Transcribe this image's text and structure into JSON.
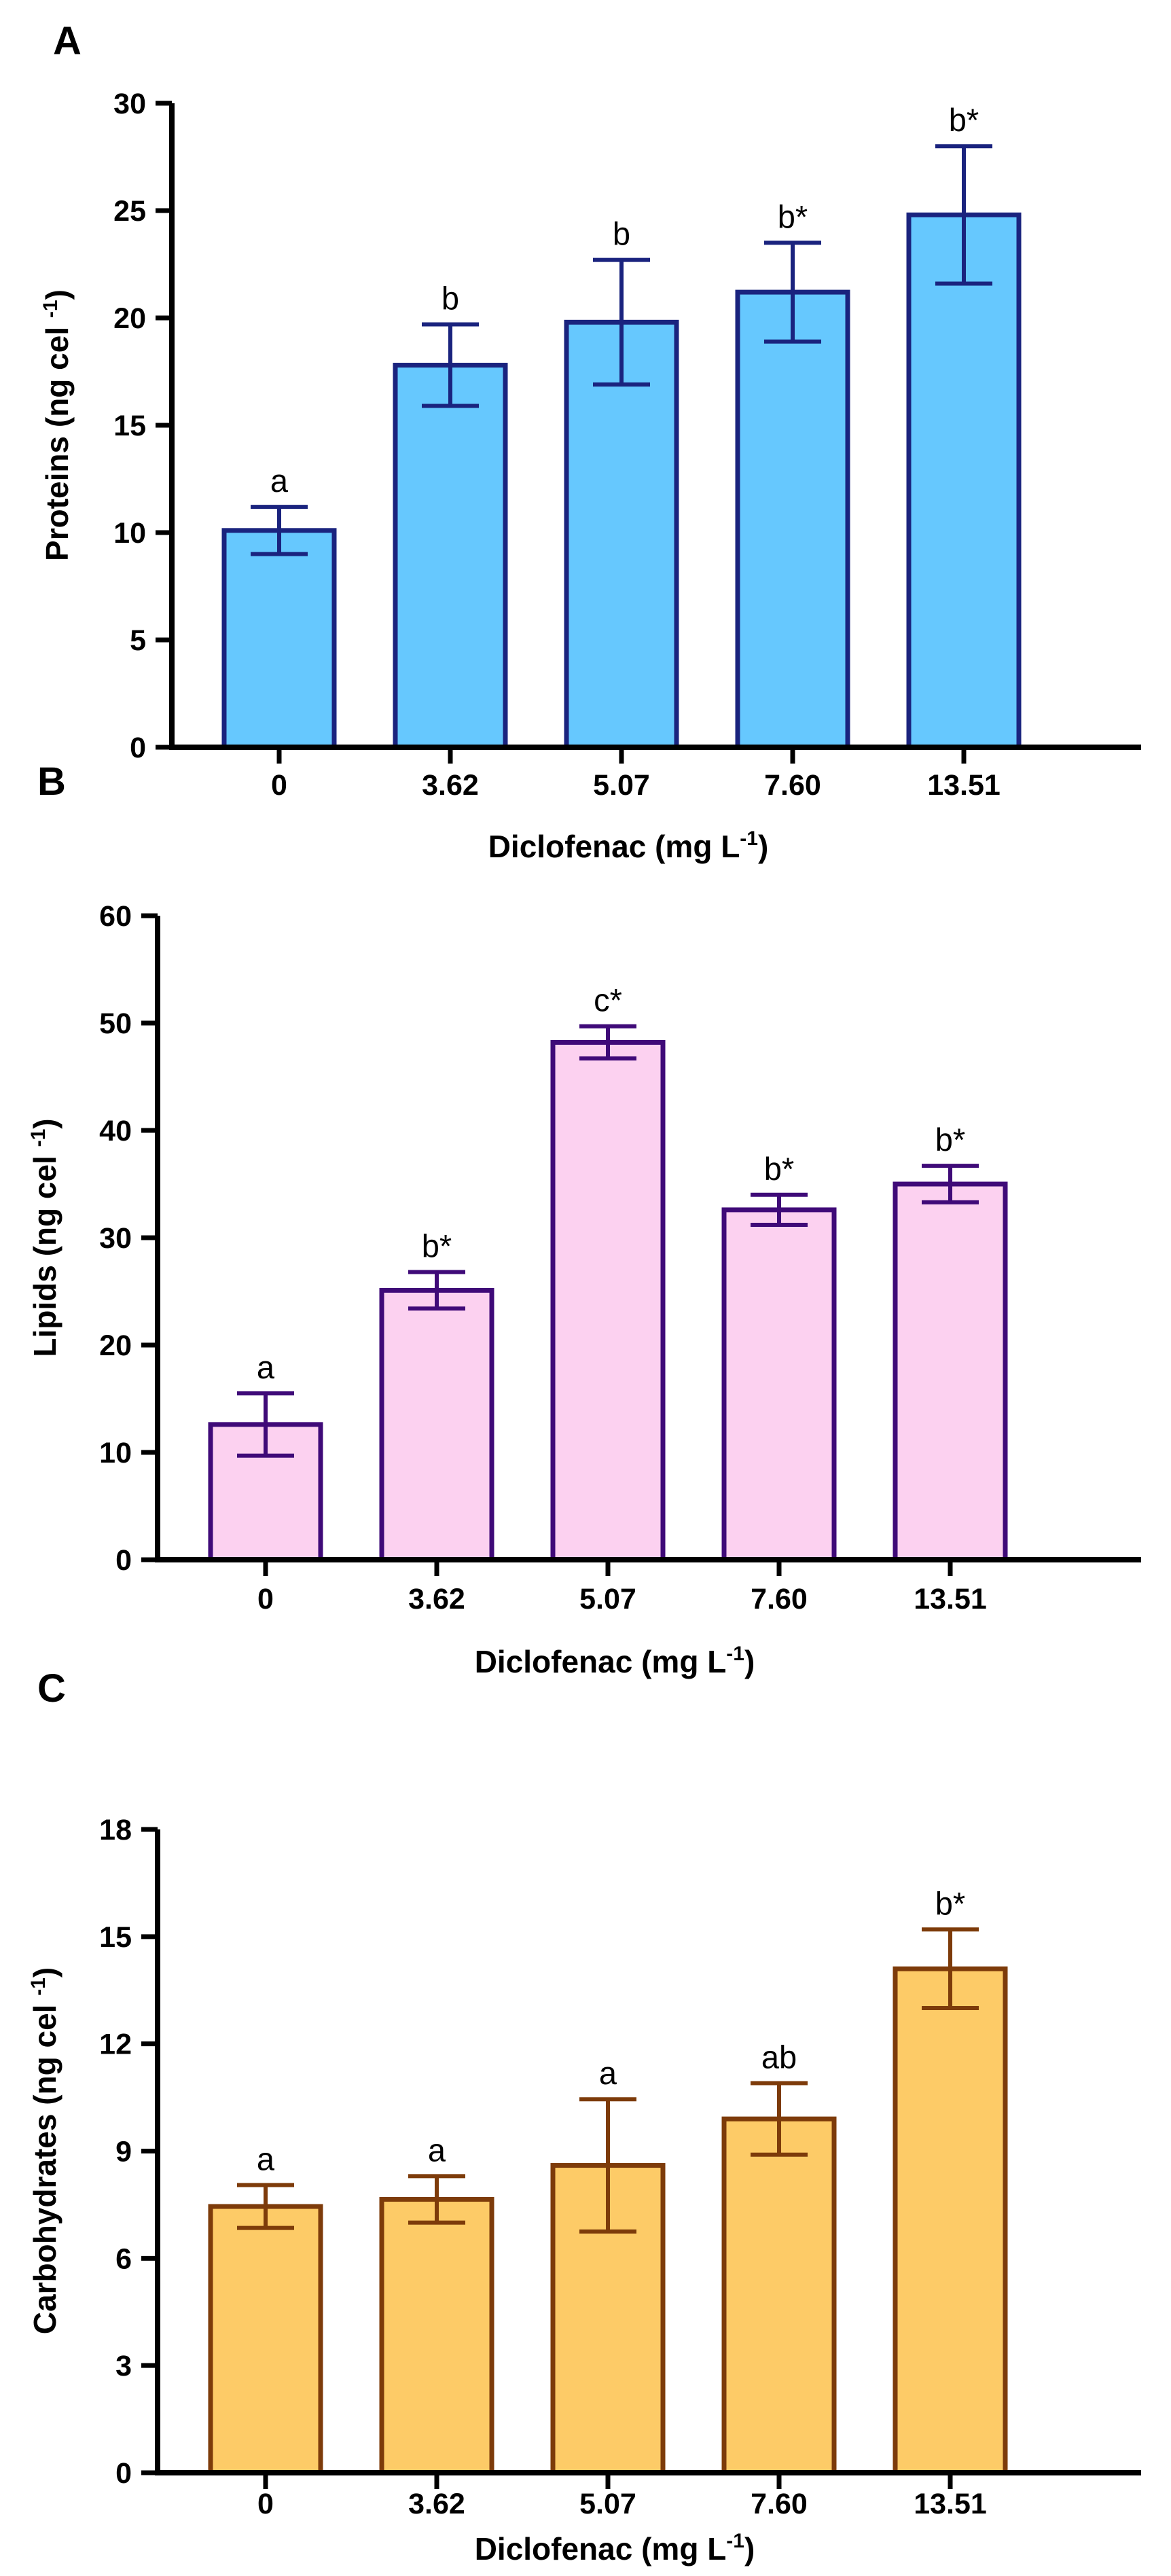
{
  "chart_data": [
    {
      "panel": "A",
      "type": "bar",
      "categories": [
        "0",
        "3.62",
        "5.07",
        "7.60",
        "13.51"
      ],
      "values": [
        10.1,
        17.8,
        19.8,
        21.2,
        24.8
      ],
      "error": [
        1.1,
        1.9,
        2.9,
        2.3,
        3.2
      ],
      "sig_labels": [
        "a",
        "b",
        "b",
        "b*",
        "b*"
      ],
      "ylim": [
        0,
        30
      ],
      "yticks": [
        0,
        5,
        10,
        15,
        20,
        25,
        30
      ],
      "ylabel": "Proteins (ng cel",
      "ylabel_sup": "-1",
      "ylabel_end": ")",
      "xlabel": "Diclofenac (mg L",
      "xlabel_sup": "-1",
      "xlabel_end": ")",
      "fill_color": "#66c8fe",
      "edge_color": "#1a237e",
      "grid": false
    },
    {
      "panel": "B",
      "type": "bar",
      "categories": [
        "0",
        "3.62",
        "5.07",
        "7.60",
        "13.51"
      ],
      "values": [
        12.6,
        25.1,
        48.2,
        32.6,
        35.0
      ],
      "error": [
        2.9,
        1.7,
        1.5,
        1.4,
        1.7
      ],
      "sig_labels": [
        "a",
        "b*",
        "c*",
        "b*",
        "b*"
      ],
      "ylim": [
        0,
        60
      ],
      "yticks": [
        0,
        10,
        20,
        30,
        40,
        50,
        60
      ],
      "ylabel": "Lipids (ng cel",
      "ylabel_sup": "-1",
      "ylabel_end": ")",
      "xlabel": "Diclofenac (mg L",
      "xlabel_sup": "-1",
      "xlabel_end": ")",
      "fill_color": "#fcd1f0",
      "edge_color": "#3f0a78",
      "grid": false
    },
    {
      "panel": "C",
      "type": "bar",
      "categories": [
        "0",
        "3.62",
        "5.07",
        "7.60",
        "13.51"
      ],
      "values": [
        7.45,
        7.65,
        8.6,
        9.9,
        14.1
      ],
      "error": [
        0.6,
        0.65,
        1.85,
        1.0,
        1.1
      ],
      "sig_labels": [
        "a",
        "a",
        "a",
        "ab",
        "b*"
      ],
      "ylim": [
        0,
        18
      ],
      "yticks": [
        0,
        3,
        6,
        9,
        12,
        15,
        18
      ],
      "ylabel": "Carbohydrates (ng cel",
      "ylabel_sup": "-1",
      "ylabel_end": ")",
      "xlabel": "Diclofenac (mg L",
      "xlabel_sup": "-1",
      "xlabel_end": ")",
      "fill_color": "#fdcb67",
      "edge_color": "#7d3b0a",
      "grid": false
    }
  ]
}
